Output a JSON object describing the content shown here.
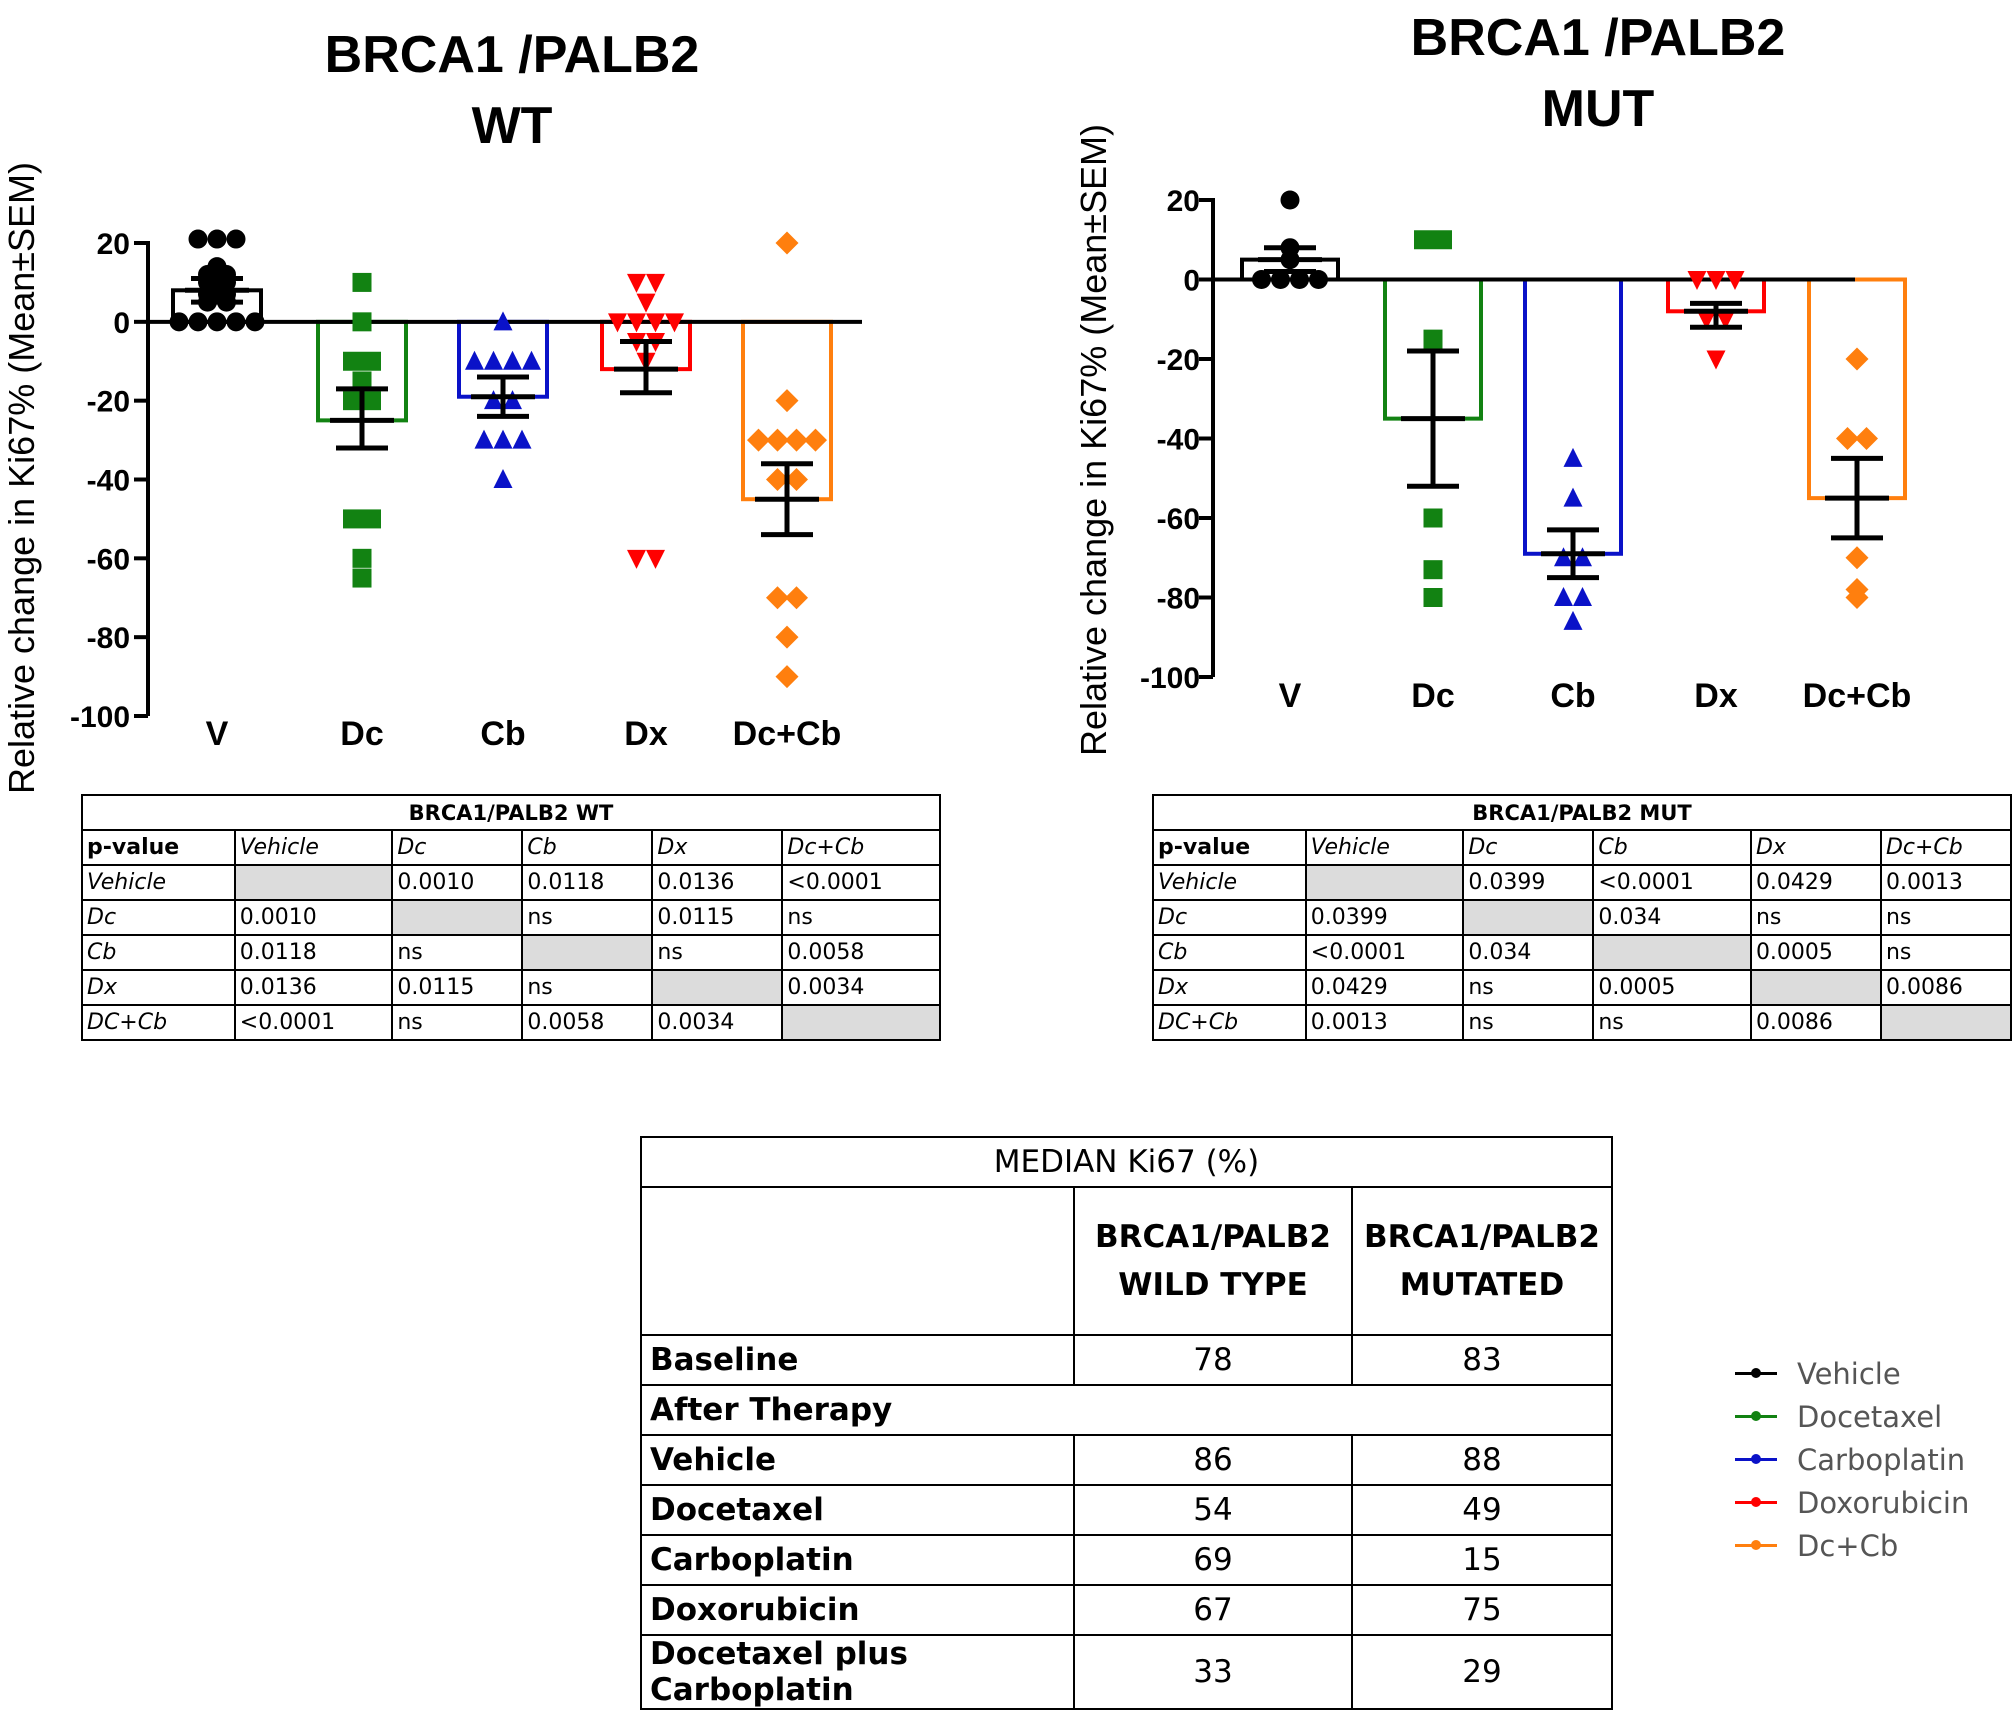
{
  "chart_data": [
    {
      "type": "bar",
      "title_line1": "BRCA1 /PALB2",
      "title_line2": "WT",
      "ylabel": "Relative change in Ki67%  (Mean±SEM)",
      "ylim": [
        -100,
        20
      ],
      "yticks": [
        20,
        0,
        -20,
        -40,
        -60,
        -80,
        -100
      ],
      "categories": [
        "V",
        "Dc",
        "Cb",
        "Dx",
        "Dc+Cb"
      ],
      "bar_style": "outline bar with mean ± SEM error bars and individual points",
      "series": [
        {
          "name": "Vehicle",
          "color": "#000000",
          "marker": "circle",
          "mean": 8,
          "sem_low": 5,
          "sem_high": 11,
          "points": [
            21,
            21,
            21,
            14,
            12,
            12,
            10,
            10,
            7,
            7,
            5,
            5,
            0,
            0,
            0,
            0,
            0
          ]
        },
        {
          "name": "Docetaxel",
          "color": "#128212",
          "marker": "square",
          "mean": -25,
          "sem_low": -32,
          "sem_high": -17,
          "points": [
            10,
            0,
            -10,
            -10,
            -15,
            -20,
            -20,
            -50,
            -50,
            -60,
            -65
          ]
        },
        {
          "name": "Carboplatin",
          "color": "#0a12c8",
          "marker": "triangle-up",
          "mean": -19,
          "sem_low": -24,
          "sem_high": -14,
          "points": [
            0,
            -10,
            -10,
            -10,
            -10,
            -20,
            -20,
            -30,
            -30,
            -30,
            -40
          ]
        },
        {
          "name": "Doxorubicin",
          "color": "#ff0000",
          "marker": "triangle-down",
          "mean": -12,
          "sem_low": -18,
          "sem_high": -5,
          "points": [
            10,
            10,
            5,
            0,
            0,
            0,
            0,
            -5,
            -5,
            -10,
            -60,
            -60
          ]
        },
        {
          "name": "Dc+Cb",
          "color": "#ff7f0e",
          "marker": "diamond",
          "mean": -45,
          "sem_low": -54,
          "sem_high": -36,
          "points": [
            20,
            -20,
            -30,
            -30,
            -30,
            -30,
            -40,
            -40,
            -70,
            -70,
            -80,
            -90
          ]
        }
      ]
    },
    {
      "type": "bar",
      "title_line1": "BRCA1 /PALB2",
      "title_line2": "MUT",
      "ylabel": "Relative change in Ki67%  (Mean±SEM)",
      "ylim": [
        -100,
        20
      ],
      "yticks": [
        20,
        0,
        -20,
        -40,
        -60,
        -80,
        -100
      ],
      "categories": [
        "V",
        "Dc",
        "Cb",
        "Dx",
        "Dc+Cb"
      ],
      "bar_style": "outline bar with mean ± SEM error bars and individual points",
      "series": [
        {
          "name": "Vehicle",
          "color": "#000000",
          "marker": "circle",
          "mean": 5,
          "sem_low": 2,
          "sem_high": 8,
          "points": [
            20,
            8,
            5,
            0,
            0,
            0,
            0
          ]
        },
        {
          "name": "Docetaxel",
          "color": "#128212",
          "marker": "square",
          "mean": -35,
          "sem_low": -52,
          "sem_high": -18,
          "points": [
            10,
            10,
            -15,
            -60,
            -73,
            -80
          ]
        },
        {
          "name": "Carboplatin",
          "color": "#0a12c8",
          "marker": "triangle-up",
          "mean": -69,
          "sem_low": -75,
          "sem_high": -63,
          "points": [
            -45,
            -55,
            -70,
            -70,
            -80,
            -80,
            -86
          ]
        },
        {
          "name": "Doxorubicin",
          "color": "#ff0000",
          "marker": "triangle-down",
          "mean": -8,
          "sem_low": -12,
          "sem_high": -6,
          "points": [
            0,
            0,
            0,
            -10,
            -10,
            -20
          ]
        },
        {
          "name": "Dc+Cb",
          "color": "#ff7f0e",
          "marker": "diamond",
          "mean": -55,
          "sem_low": -65,
          "sem_high": -45,
          "points": [
            -20,
            -40,
            -40,
            -70,
            -78,
            -80
          ]
        }
      ]
    }
  ],
  "wt_table": {
    "caption": "BRCA1/PALB2 WT",
    "header": [
      "p-value",
      "Vehicle",
      "Dc",
      "Cb",
      "Dx",
      "Dc+Cb"
    ],
    "rows": [
      [
        "Vehicle",
        "",
        "0.0010",
        "0.0118",
        "0.0136",
        "<0.0001"
      ],
      [
        "Dc",
        "0.0010",
        "",
        "ns",
        "0.0115",
        "ns"
      ],
      [
        "Cb",
        "0.0118",
        "ns",
        "",
        "ns",
        "0.0058"
      ],
      [
        "Dx",
        "0.0136",
        "0.0115",
        "ns",
        "",
        "0.0034"
      ],
      [
        "DC+Cb",
        "<0.0001",
        "ns",
        "0.0058",
        "0.0034",
        ""
      ]
    ]
  },
  "mut_table": {
    "caption": "BRCA1/PALB2 MUT",
    "header": [
      "p-value",
      "Vehicle",
      "Dc",
      "Cb",
      "Dx",
      "Dc+Cb"
    ],
    "rows": [
      [
        "Vehicle",
        "",
        "0.0399",
        "<0.0001",
        "0.0429",
        "0.0013"
      ],
      [
        "Dc",
        "0.0399",
        "",
        "0.034",
        "ns",
        "ns"
      ],
      [
        "Cb",
        "<0.0001",
        "0.034",
        "",
        "0.0005",
        "ns"
      ],
      [
        "Dx",
        "0.0429",
        "ns",
        "0.0005",
        "",
        "0.0086"
      ],
      [
        "DC+Cb",
        "0.0013",
        "ns",
        "ns",
        "0.0086",
        ""
      ]
    ]
  },
  "median_table": {
    "caption": "MEDIAN Ki67 (%)",
    "col1_line1": "BRCA1/PALB2",
    "col1_line2": "WILD TYPE",
    "col2_line1": "BRCA1/PALB2",
    "col2_line2": "MUTATED",
    "baseline": {
      "label": "Baseline",
      "wt": "78",
      "mut": "83"
    },
    "after_label": "After Therapy",
    "rows": [
      {
        "label": "Vehicle",
        "wt": "86",
        "mut": "88"
      },
      {
        "label": "Docetaxel",
        "wt": "54",
        "mut": "49"
      },
      {
        "label": "Carboplatin",
        "wt": "69",
        "mut": "15"
      },
      {
        "label": "Doxorubicin",
        "wt": "67",
        "mut": "75"
      },
      {
        "label": "Docetaxel plus Carboplatin",
        "wt": "33",
        "mut": "29"
      }
    ]
  },
  "legend": [
    {
      "label": "Vehicle",
      "color": "#000000"
    },
    {
      "label": "Docetaxel",
      "color": "#128212"
    },
    {
      "label": "Carboplatin",
      "color": "#0a12c8"
    },
    {
      "label": "Doxorubicin",
      "color": "#ff0000"
    },
    {
      "label": "Dc+Cb",
      "color": "#ff7f0e"
    }
  ]
}
